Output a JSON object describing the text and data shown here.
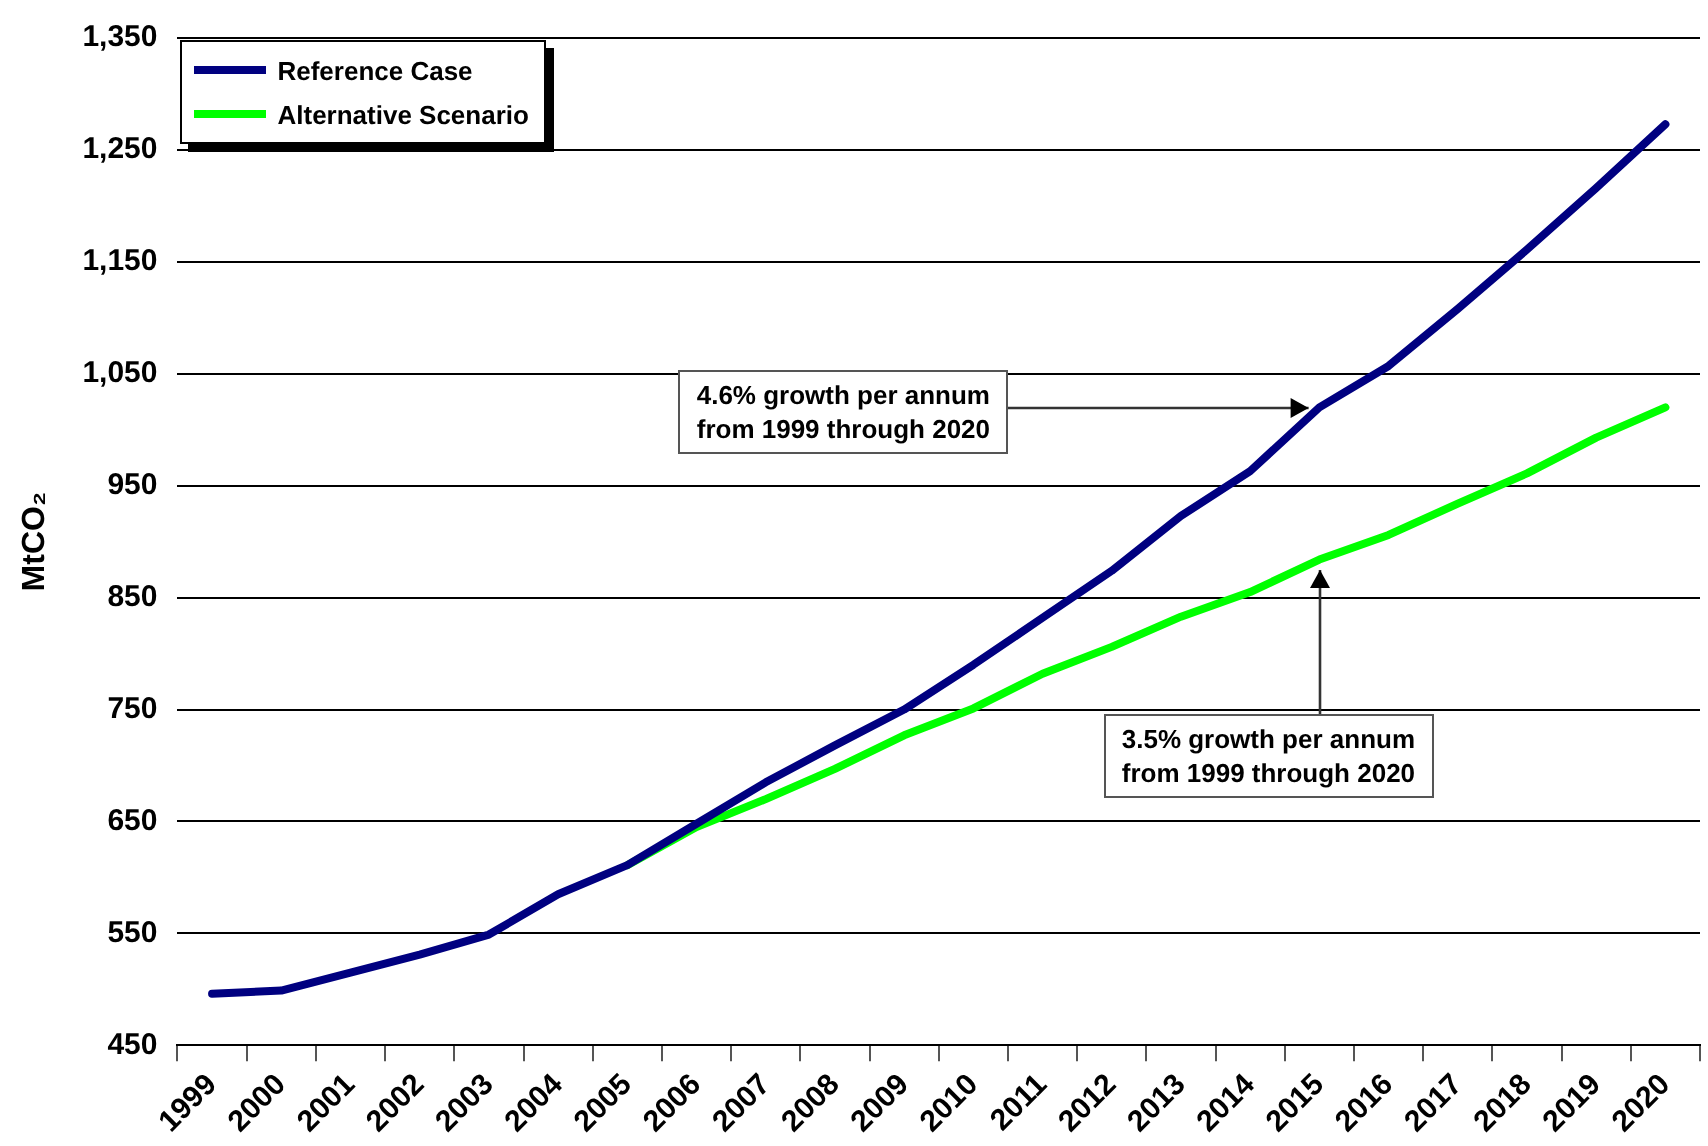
{
  "chart_data": {
    "type": "line",
    "ylabel": "MtCO₂",
    "categories": [
      "1999",
      "2000",
      "2001",
      "2002",
      "2003",
      "2004",
      "2005",
      "2006",
      "2007",
      "2008",
      "2009",
      "2010",
      "2011",
      "2012",
      "2013",
      "2014",
      "2015",
      "2016",
      "2017",
      "2018",
      "2019",
      "2020"
    ],
    "series": [
      {
        "name": "Reference Case",
        "color": "#000080",
        "values": [
          496,
          499,
          515,
          531,
          549,
          585,
          611,
          648,
          685,
          718,
          750,
          790,
          832,
          874,
          923,
          963,
          1020,
          1057,
          1108,
          1161,
          1216,
          1273
        ]
      },
      {
        "name": "Alternative Scenario",
        "color": "#00ff00",
        "values": [
          null,
          null,
          null,
          null,
          null,
          null,
          611,
          645,
          670,
          697,
          727,
          751,
          782,
          806,
          833,
          855,
          884,
          906,
          934,
          961,
          993,
          1020
        ]
      }
    ],
    "ylim": [
      450,
      1350
    ],
    "yticks": [
      {
        "value": 450,
        "label": "450"
      },
      {
        "value": 550,
        "label": "550"
      },
      {
        "value": 650,
        "label": "650"
      },
      {
        "value": 750,
        "label": "750"
      },
      {
        "value": 850,
        "label": "850"
      },
      {
        "value": 950,
        "label": "950"
      },
      {
        "value": 1050,
        "label": "1,050"
      },
      {
        "value": 1150,
        "label": "1,150"
      },
      {
        "value": 1250,
        "label": "1,250"
      },
      {
        "value": 1350,
        "label": "1,350"
      }
    ],
    "grid": "y",
    "legend": "top left",
    "marker": "none",
    "line_style": "solid",
    "annotations": [
      {
        "text": "4.6% growth per annum\nfrom 1999 through 2020",
        "x": "2015",
        "y": 1020
      },
      {
        "text": "3.5% growth per annum\nfrom 1999 through 2020",
        "x": "2015",
        "y": 884
      }
    ]
  }
}
